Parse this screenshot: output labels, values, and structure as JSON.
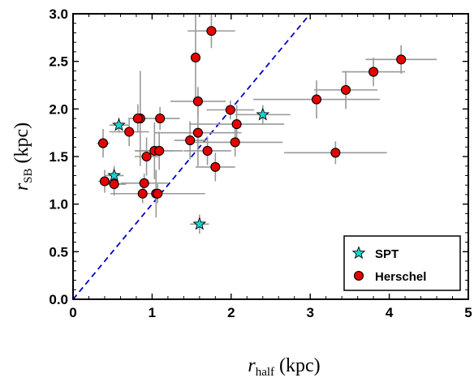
{
  "chart_data": {
    "type": "scatter",
    "xlabel": {
      "main": "r",
      "sub": "half",
      "unit": " (kpc)"
    },
    "ylabel": {
      "main": "r",
      "sub": "SB",
      "unit": " (kpc)"
    },
    "xlim": [
      0,
      5
    ],
    "ylim": [
      0,
      3
    ],
    "xticks": [
      "0",
      "1",
      "2",
      "3",
      "4",
      "5"
    ],
    "yticks": [
      "0.0",
      "0.5",
      "1.0",
      "1.5",
      "2.0",
      "2.5",
      "3.0"
    ],
    "reference_line": {
      "type": "y=x",
      "color": "#0000cc",
      "style": "dashed"
    },
    "legend": {
      "placement": "bottom-right"
    },
    "series": [
      {
        "name": "SPT",
        "marker": "star",
        "color": "#19d4d4",
        "points": [
          {
            "x": 0.58,
            "y": 1.83,
            "xerr": 0.12,
            "yerr": 0.08
          },
          {
            "x": 0.52,
            "y": 1.3,
            "xerr": 0.12,
            "yerr": 0.1
          },
          {
            "x": 2.4,
            "y": 1.94,
            "xerr": 0.35,
            "yerr": 0.1
          },
          {
            "x": 1.6,
            "y": 0.79,
            "xerr": 0.12,
            "yerr": 0.1
          }
        ]
      },
      {
        "name": "Herschel",
        "marker": "circle",
        "color": "#e60000",
        "points": [
          {
            "x": 1.75,
            "y": 2.82,
            "xerr": 0.3,
            "yerr": 0.18
          },
          {
            "x": 1.55,
            "y": 2.54,
            "xerr": 0.05,
            "yerr": 0.45
          },
          {
            "x": 4.15,
            "y": 2.52,
            "xerr": 0.45,
            "yerr": 0.15
          },
          {
            "x": 3.8,
            "y": 2.39,
            "xerr": 0.4,
            "yerr": 0.15
          },
          {
            "x": 3.45,
            "y": 2.2,
            "xerr": 0.4,
            "yerr": 0.2
          },
          {
            "x": 3.08,
            "y": 2.1,
            "xerr": 0.8,
            "yerr": 0.2
          },
          {
            "x": 1.58,
            "y": 2.08,
            "xerr": 0.35,
            "yerr": 0.15
          },
          {
            "x": 1.99,
            "y": 1.99,
            "xerr": 0.3,
            "yerr": 0.1
          },
          {
            "x": 0.85,
            "y": 1.9,
            "xerr": 0.1,
            "yerr": 0.5
          },
          {
            "x": 0.82,
            "y": 1.9,
            "xerr": 0.1,
            "yerr": 0.15
          },
          {
            "x": 1.1,
            "y": 1.9,
            "xerr": 0.25,
            "yerr": 0.12
          },
          {
            "x": 2.07,
            "y": 1.84,
            "xerr": 0.6,
            "yerr": 0.2
          },
          {
            "x": 0.71,
            "y": 1.76,
            "xerr": 0.25,
            "yerr": 0.15
          },
          {
            "x": 1.58,
            "y": 1.75,
            "xerr": 0.55,
            "yerr": 0.35
          },
          {
            "x": 1.48,
            "y": 1.67,
            "xerr": 0.2,
            "yerr": 0.2
          },
          {
            "x": 2.05,
            "y": 1.65,
            "xerr": 0.6,
            "yerr": 0.15
          },
          {
            "x": 0.38,
            "y": 1.64,
            "xerr": 0.08,
            "yerr": 0.15
          },
          {
            "x": 1.03,
            "y": 1.56,
            "xerr": 0.25,
            "yerr": 0.3
          },
          {
            "x": 1.09,
            "y": 1.56,
            "xerr": 0.3,
            "yerr": 0.2
          },
          {
            "x": 1.7,
            "y": 1.56,
            "xerr": 0.3,
            "yerr": 0.15
          },
          {
            "x": 3.32,
            "y": 1.54,
            "xerr": 0.65,
            "yerr": 0.12
          },
          {
            "x": 0.93,
            "y": 1.5,
            "xerr": 0.15,
            "yerr": 0.2
          },
          {
            "x": 1.8,
            "y": 1.39,
            "xerr": 0.25,
            "yerr": 0.15
          },
          {
            "x": 0.4,
            "y": 1.24,
            "xerr": 0.08,
            "yerr": 0.12
          },
          {
            "x": 0.52,
            "y": 1.21,
            "xerr": 0.15,
            "yerr": 0.12
          },
          {
            "x": 0.9,
            "y": 1.22,
            "xerr": 0.3,
            "yerr": 0.1
          },
          {
            "x": 0.88,
            "y": 1.11,
            "xerr": 0.15,
            "yerr": 0.1
          },
          {
            "x": 1.05,
            "y": 1.11,
            "xerr": 0.15,
            "yerr": 0.25
          },
          {
            "x": 1.07,
            "y": 1.11,
            "xerr": 0.6,
            "yerr": 0.1
          }
        ]
      }
    ]
  }
}
